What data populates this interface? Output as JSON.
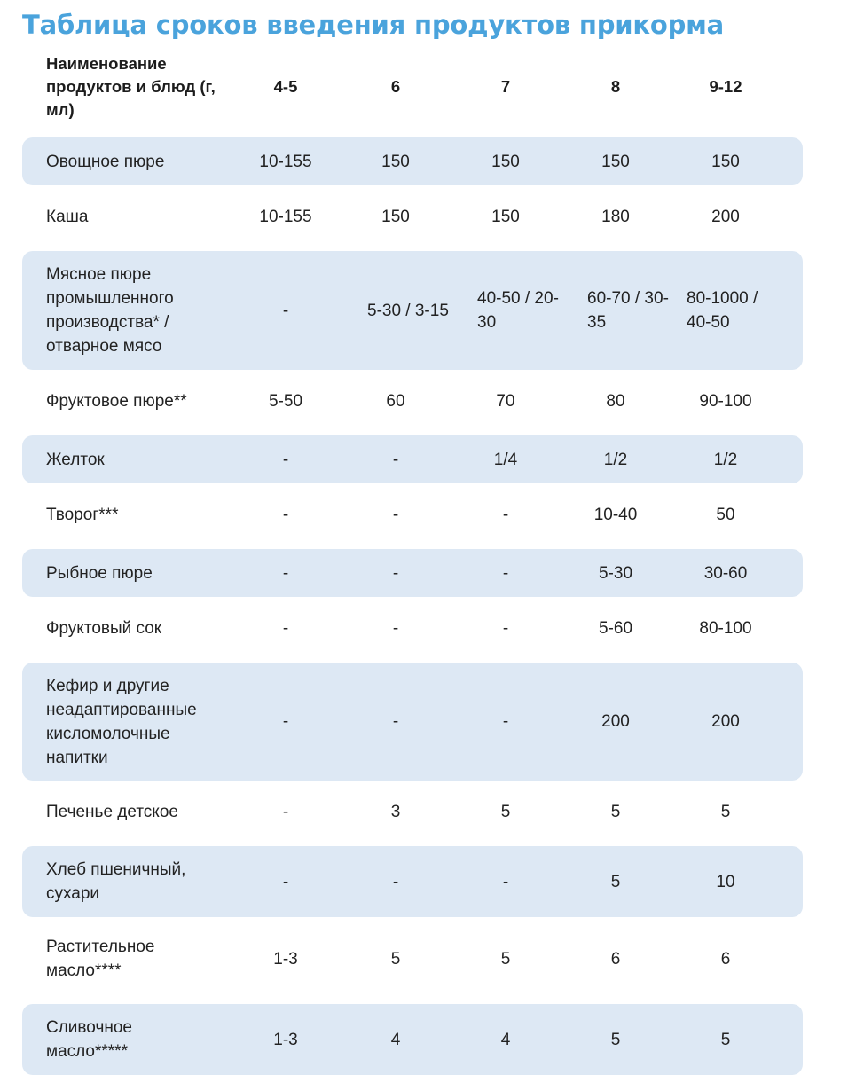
{
  "title": "Таблица сроков введения продуктов прикорма",
  "header": {
    "name": "Наименование продуктов и блюд (г, мл)",
    "months": [
      "4-5",
      "6",
      "7",
      "8",
      "9-12"
    ]
  },
  "rows": [
    {
      "name": "Овощное пюре",
      "values": [
        "10-155",
        "150",
        "150",
        "150",
        "150"
      ]
    },
    {
      "name": "Каша",
      "values": [
        "10-155",
        "150",
        "150",
        "180",
        "200"
      ]
    },
    {
      "name": "Мясное пюре промышленного производства* / отварное мясо",
      "values": [
        "-",
        "5-30 / 3-15",
        "40-50 / 20-30",
        "60-70 / 30-35",
        "80-1000 / 40-50"
      ]
    },
    {
      "name": "Фруктовое пюре**",
      "values": [
        "5-50",
        "60",
        "70",
        "80",
        "90-100"
      ]
    },
    {
      "name": "Желток",
      "values": [
        "-",
        "-",
        "1/4",
        "1/2",
        "1/2"
      ]
    },
    {
      "name": "Творог***",
      "values": [
        "-",
        "-",
        "-",
        "10-40",
        "50"
      ]
    },
    {
      "name": "Рыбное пюре",
      "values": [
        "-",
        "-",
        "-",
        "5-30",
        "30-60"
      ]
    },
    {
      "name": "Фруктовый сок",
      "values": [
        "-",
        "-",
        "-",
        "5-60",
        "80-100"
      ]
    },
    {
      "name": "Кефир и другие неадаптированные кисломолочные напитки",
      "values": [
        "-",
        "-",
        "-",
        "200",
        "200"
      ]
    },
    {
      "name": "Печенье детское",
      "values": [
        "-",
        "3",
        "5",
        "5",
        "5"
      ]
    },
    {
      "name": "Хлеб пшеничный, сухари",
      "values": [
        "-",
        "-",
        "-",
        "5",
        "10"
      ]
    },
    {
      "name": "Растительное масло****",
      "values": [
        "1-3",
        "5",
        "5",
        "6",
        "6"
      ]
    },
    {
      "name": "Сливочное масло*****",
      "values": [
        "1-3",
        "4",
        "4",
        "5",
        "5"
      ]
    }
  ]
}
